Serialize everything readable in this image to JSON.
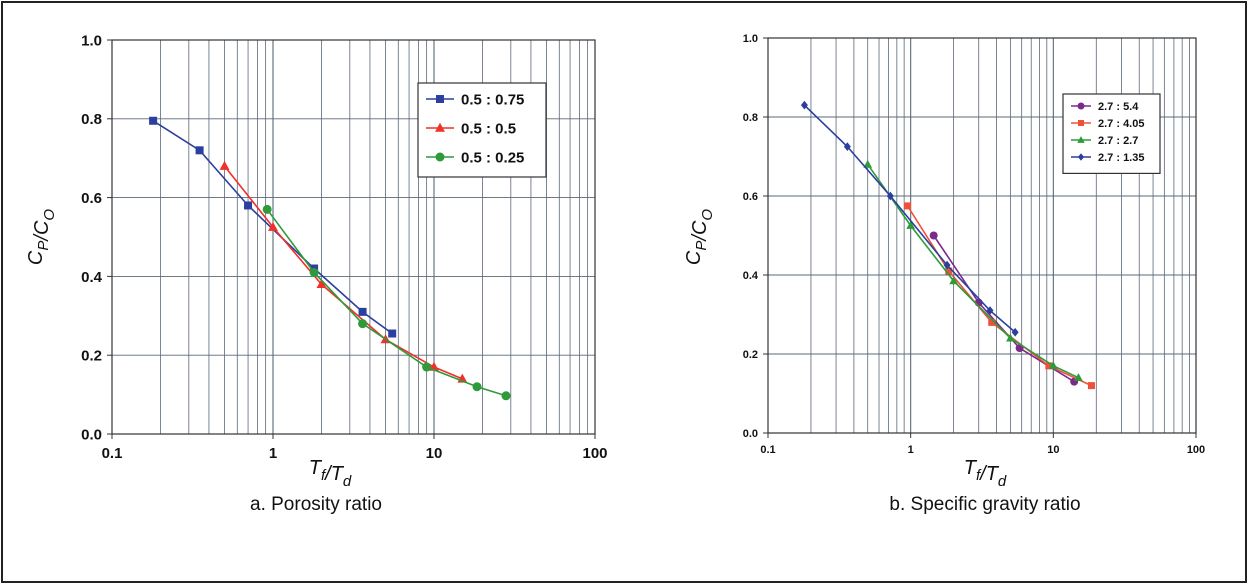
{
  "chart_data": [
    {
      "type": "scatter",
      "subtype": "line-with-markers",
      "caption": "a.  Porosity ratio",
      "xlabel": "T_f/T_d",
      "ylabel": "C_P/C_O",
      "xscale": "log",
      "xlim": [
        0.1,
        100
      ],
      "ylim": [
        0,
        1
      ],
      "xticks": [
        "0.1",
        "1",
        "10",
        "100"
      ],
      "yticks": [
        "0.0",
        "0.2",
        "0.4",
        "0.6",
        "0.8",
        "1.0"
      ],
      "grid": true,
      "legend_position": "top-right",
      "series": [
        {
          "name": "0.5 : 0.75",
          "color": "#2b3f9e",
          "marker": "square",
          "x": [
            0.18,
            0.35,
            0.7,
            1.8,
            3.6,
            5.5
          ],
          "y": [
            0.795,
            0.72,
            0.58,
            0.42,
            0.31,
            0.255
          ]
        },
        {
          "name": "0.5 : 0.5",
          "color": "#f0302a",
          "marker": "triangle",
          "x": [
            0.5,
            1.0,
            2.0,
            5.0,
            10.0,
            15.0
          ],
          "y": [
            0.68,
            0.525,
            0.38,
            0.24,
            0.17,
            0.14
          ]
        },
        {
          "name": "0.5 : 0.25",
          "color": "#2e9a3a",
          "marker": "circle",
          "x": [
            0.92,
            1.8,
            3.6,
            9.0,
            18.5,
            28.0
          ],
          "y": [
            0.57,
            0.41,
            0.28,
            0.17,
            0.12,
            0.097
          ]
        }
      ]
    },
    {
      "type": "scatter",
      "subtype": "line-with-markers",
      "caption": "b.  Specific gravity ratio",
      "xlabel": "T_f/T_d",
      "ylabel": "C_P/C_O",
      "xscale": "log",
      "xlim": [
        0.1,
        100
      ],
      "ylim": [
        0,
        1
      ],
      "xticks": [
        "0.1",
        "1",
        "10",
        "100"
      ],
      "yticks": [
        "0.0",
        "0.2",
        "0.4",
        "0.6",
        "0.8",
        "1.0"
      ],
      "grid": true,
      "legend_position": "top-right",
      "series": [
        {
          "name": "2.7 : 5.4",
          "color": "#7b2a8c",
          "marker": "circle",
          "x": [
            1.45,
            3.0,
            5.8,
            14.0
          ],
          "y": [
            0.5,
            0.33,
            0.215,
            0.13
          ]
        },
        {
          "name": "2.7 : 4.05",
          "color": "#f0503a",
          "marker": "square",
          "x": [
            0.95,
            1.85,
            3.7,
            9.3,
            18.5
          ],
          "y": [
            0.575,
            0.41,
            0.28,
            0.17,
            0.12
          ]
        },
        {
          "name": "2.7 : 2.7",
          "color": "#2e9a3a",
          "marker": "triangle",
          "x": [
            0.5,
            1.0,
            2.0,
            5.0,
            10.0,
            15.0
          ],
          "y": [
            0.68,
            0.525,
            0.385,
            0.24,
            0.17,
            0.14
          ]
        },
        {
          "name": "2.7 : 1.35",
          "color": "#2b3f9e",
          "marker": "diamond",
          "x": [
            0.18,
            0.36,
            0.72,
            1.8,
            3.6,
            5.4
          ],
          "y": [
            0.83,
            0.725,
            0.6,
            0.425,
            0.31,
            0.255
          ]
        }
      ]
    }
  ]
}
